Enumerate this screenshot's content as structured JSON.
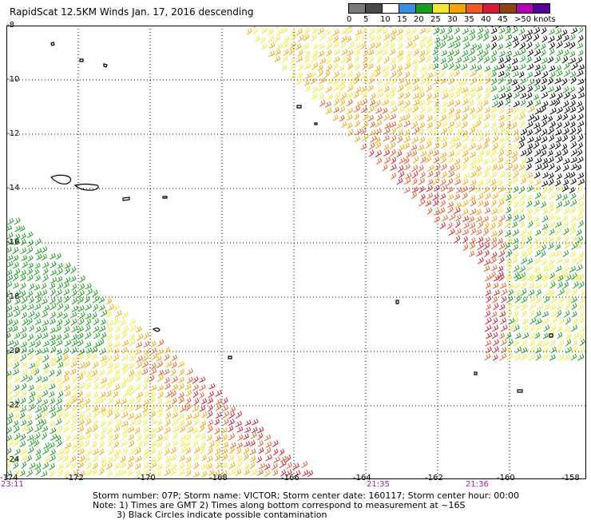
{
  "title": "RapidScat 12.5KM Winds Jan. 17, 2016 descending",
  "legend": {
    "labels": [
      "0",
      "5",
      "10",
      "15",
      "20",
      "25",
      "30",
      "35",
      "40",
      "45",
      ">50 knots"
    ],
    "colors": [
      "#7a7a7a",
      "#4a4a4a",
      "#ffffff",
      "#3a8fe0",
      "#1a9f1a",
      "#f2e830",
      "#f5a500",
      "#ee5a23",
      "#d91a33",
      "#8b4513",
      "#b300b3",
      "#550099"
    ]
  },
  "axes": {
    "lat_labels": [
      "-8",
      "-10",
      "-12",
      "-14",
      "-16",
      "-18",
      "-20",
      "-22",
      "-24"
    ],
    "lon_labels": [
      "-174",
      "-172",
      "-170",
      "-168",
      "-166",
      "-164",
      "-162",
      "-160",
      "-158"
    ]
  },
  "times": [
    "23:11",
    "21:35",
    "21:36"
  ],
  "notes": {
    "line1": "Storm number: 07P;  Storm name: VICTOR;  Storm center date: 160117;  Storm center hour: 00:00",
    "line2": "Note: 1) Times are GMT  2) Times along bottom correspond to measurement at ~16S",
    "line3": "3) Black Circles indicate possible contamination"
  },
  "swaths": [
    {
      "name": "east-swath"
    },
    {
      "name": "west-swath"
    }
  ]
}
